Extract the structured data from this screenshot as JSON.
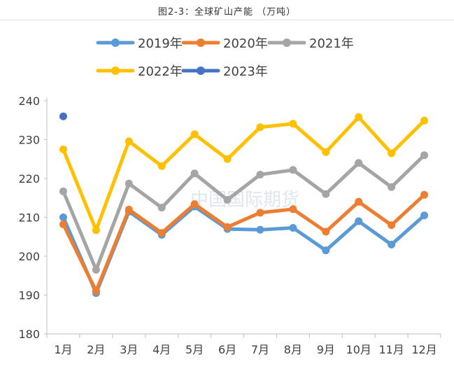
{
  "chart_data": {
    "type": "line",
    "title": "图2-3：全球矿山产能  （万吨）",
    "watermark": "中国国际期货",
    "categories": [
      "1月",
      "2月",
      "3月",
      "4月",
      "5月",
      "6月",
      "7月",
      "8月",
      "9月",
      "10月",
      "11月",
      "12月"
    ],
    "ylim": [
      180,
      240
    ],
    "yticks": [
      180,
      190,
      200,
      210,
      220,
      230,
      240
    ],
    "grid": false,
    "legend_position": "top",
    "series": [
      {
        "name": "2019年",
        "color": "#5b9bd5",
        "values": [
          210.0,
          190.5,
          211.5,
          205.5,
          212.8,
          207.0,
          206.8,
          207.3,
          201.5,
          209.0,
          203.0,
          210.5
        ]
      },
      {
        "name": "2020年",
        "color": "#ed7d31",
        "values": [
          208.2,
          191.0,
          212.0,
          206.0,
          213.4,
          207.5,
          211.2,
          212.1,
          206.3,
          214.0,
          208.0,
          215.8
        ]
      },
      {
        "name": "2021年",
        "color": "#a5a5a5",
        "values": [
          216.7,
          196.5,
          218.7,
          212.5,
          221.3,
          214.5,
          221.0,
          222.2,
          216.0,
          224.0,
          217.8,
          226.0
        ]
      },
      {
        "name": "2022年",
        "color": "#ffc000",
        "values": [
          227.5,
          206.7,
          229.6,
          223.2,
          231.4,
          225.0,
          233.2,
          234.1,
          226.8,
          235.8,
          226.5,
          234.9
        ]
      },
      {
        "name": "2023年",
        "color": "#4472c4",
        "values": [
          236.0,
          null,
          null,
          null,
          null,
          null,
          null,
          null,
          null,
          null,
          null,
          null
        ]
      }
    ]
  }
}
